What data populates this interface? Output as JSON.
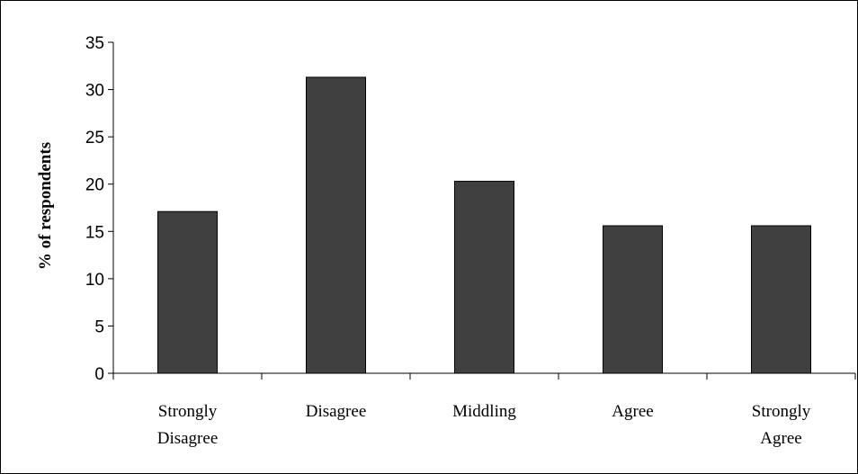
{
  "chart_data": {
    "type": "bar",
    "categories": [
      [
        "Strongly",
        "Disagree"
      ],
      [
        "Disagree"
      ],
      [
        "Middling"
      ],
      [
        "Agree"
      ],
      [
        "Strongly",
        "Agree"
      ]
    ],
    "values": [
      17.1,
      31.3,
      20.3,
      15.6,
      15.6
    ],
    "title": "",
    "xlabel": "",
    "ylabel": "% of respondents",
    "ylim": [
      0,
      35
    ],
    "yticks": [
      "0",
      "5",
      "10",
      "15",
      "20",
      "25",
      "30",
      "35"
    ],
    "bar_color": "#404040",
    "grid": false,
    "legend": "none"
  }
}
